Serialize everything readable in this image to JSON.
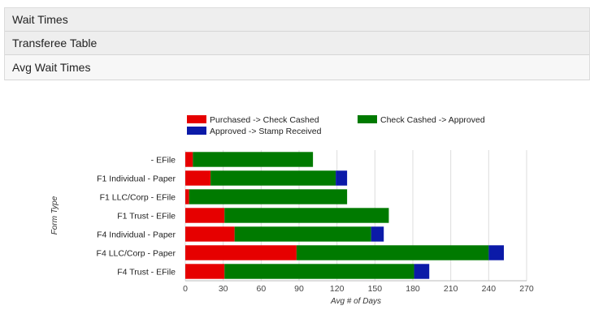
{
  "accordion": {
    "items": [
      {
        "label": "Wait Times"
      },
      {
        "label": "Transferee Table"
      },
      {
        "label": "Avg Wait Times"
      }
    ]
  },
  "colors": {
    "red": "#e60000",
    "green": "#007a00",
    "blue": "#0b1aa8",
    "grid": "#dcdcdc",
    "text": "#444444"
  },
  "chart_data": {
    "type": "bar",
    "orientation": "horizontal",
    "stacked": true,
    "categories": [
      "- EFile",
      "F1 Individual - Paper",
      "F1 LLC/Corp - EFile",
      "F1 Trust - EFile",
      "F4 Individual - Paper",
      "F4 LLC/Corp - Paper",
      "F4 Trust - EFile"
    ],
    "series": [
      {
        "name": "Purchased -> Check Cashed",
        "color": "#e60000",
        "values": [
          6,
          20,
          3,
          31,
          39,
          88,
          31
        ]
      },
      {
        "name": "Check Cashed -> Approved",
        "color": "#007a00",
        "values": [
          95,
          99,
          125,
          130,
          108,
          152,
          150
        ]
      },
      {
        "name": "Approved -> Stamp Received",
        "color": "#0b1aa8",
        "values": [
          0,
          9,
          0,
          0,
          10,
          12,
          12
        ]
      }
    ],
    "xlim": [
      0,
      270
    ],
    "xticks": [
      0,
      30,
      60,
      90,
      120,
      150,
      180,
      210,
      240,
      270
    ],
    "xlabel": "Avg # of Days",
    "ylabel": "Form Type",
    "grid": true,
    "legend": "top"
  }
}
